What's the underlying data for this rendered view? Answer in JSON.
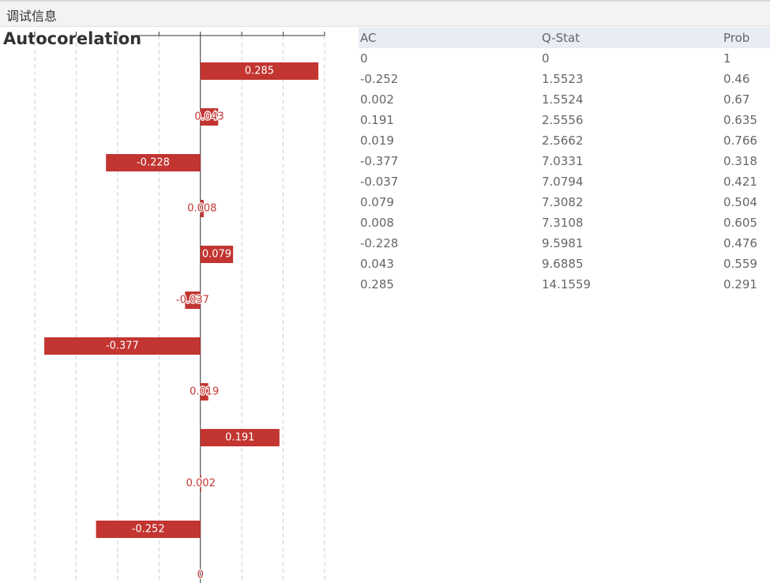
{
  "header": {
    "title": "调试信息"
  },
  "chart_data": {
    "type": "bar",
    "orientation": "horizontal",
    "title": "Autocorelation",
    "values": [
      0,
      -0.252,
      0.002,
      0.191,
      0.019,
      -0.377,
      -0.037,
      0.079,
      0.008,
      -0.228,
      0.043,
      0.285
    ],
    "color": "#c23531",
    "xlim": [
      -0.4,
      0.3
    ],
    "xticks": [
      -0.4,
      -0.3,
      -0.2,
      -0.1,
      0,
      0.1,
      0.2,
      0.3
    ],
    "grid": true
  },
  "table": {
    "columns": [
      "AC",
      "Q-Stat",
      "Prob"
    ],
    "rows": [
      [
        0,
        0,
        1
      ],
      [
        -0.252,
        1.5523,
        0.46
      ],
      [
        0.002,
        1.5524,
        0.67
      ],
      [
        0.191,
        2.5556,
        0.635
      ],
      [
        0.019,
        2.5662,
        0.766
      ],
      [
        -0.377,
        7.0331,
        0.318
      ],
      [
        -0.037,
        7.0794,
        0.421
      ],
      [
        0.079,
        7.3082,
        0.504
      ],
      [
        0.008,
        7.3108,
        0.605
      ],
      [
        -0.228,
        9.5981,
        0.476
      ],
      [
        0.043,
        9.6885,
        0.559
      ],
      [
        0.285,
        14.1559,
        0.291
      ]
    ]
  }
}
